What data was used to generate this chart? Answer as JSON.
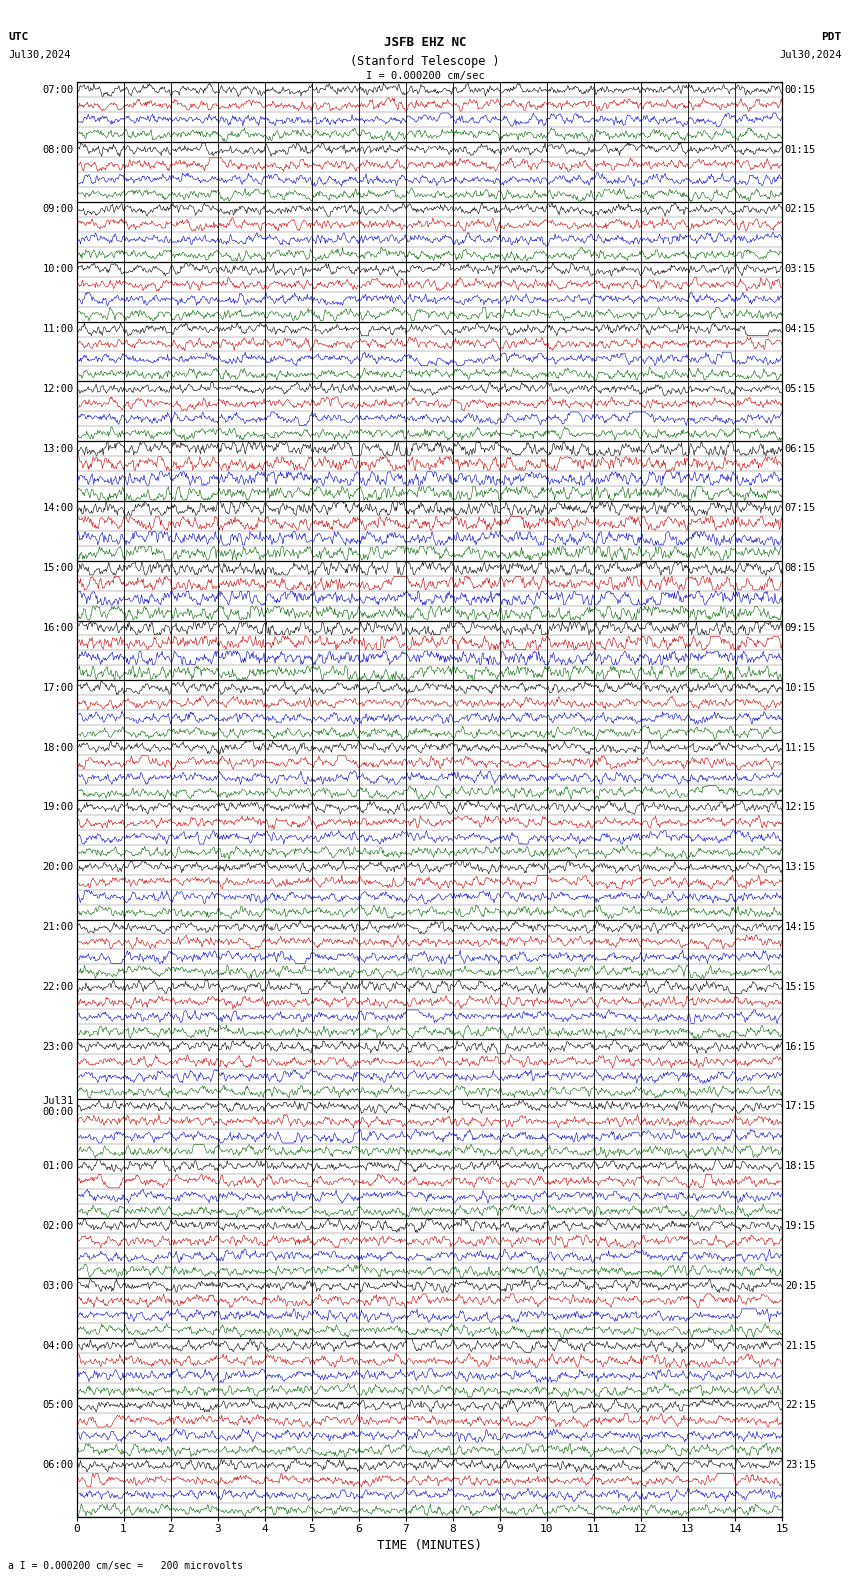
{
  "title_line1": "JSFB EHZ NC",
  "title_line2": "(Stanford Telescope )",
  "scale_label": "I = 0.000200 cm/sec",
  "bottom_label": "a I = 0.000200 cm/sec =   200 microvolts",
  "utc_label": "UTC",
  "utc_date": "Jul30,2024",
  "pdt_label": "PDT",
  "pdt_date": "Jul30,2024",
  "xlabel": "TIME (MINUTES)",
  "left_times": [
    "07:00",
    "08:00",
    "09:00",
    "10:00",
    "11:00",
    "12:00",
    "13:00",
    "14:00",
    "15:00",
    "16:00",
    "17:00",
    "18:00",
    "19:00",
    "20:00",
    "21:00",
    "22:00",
    "23:00",
    "Jul31\n00:00",
    "01:00",
    "02:00",
    "03:00",
    "04:00",
    "05:00",
    "06:00"
  ],
  "right_times": [
    "00:15",
    "01:15",
    "02:15",
    "03:15",
    "04:15",
    "05:15",
    "06:15",
    "07:15",
    "08:15",
    "09:15",
    "10:15",
    "11:15",
    "12:15",
    "13:15",
    "14:15",
    "15:15",
    "16:15",
    "17:15",
    "18:15",
    "19:15",
    "20:15",
    "21:15",
    "22:15",
    "23:15"
  ],
  "num_rows": 24,
  "minutes_per_row": 15,
  "background_color": "#ffffff",
  "trace_colors": [
    "#000000",
    "#cc0000",
    "#0000cc",
    "#006600"
  ],
  "fig_width": 8.5,
  "fig_height": 15.84
}
